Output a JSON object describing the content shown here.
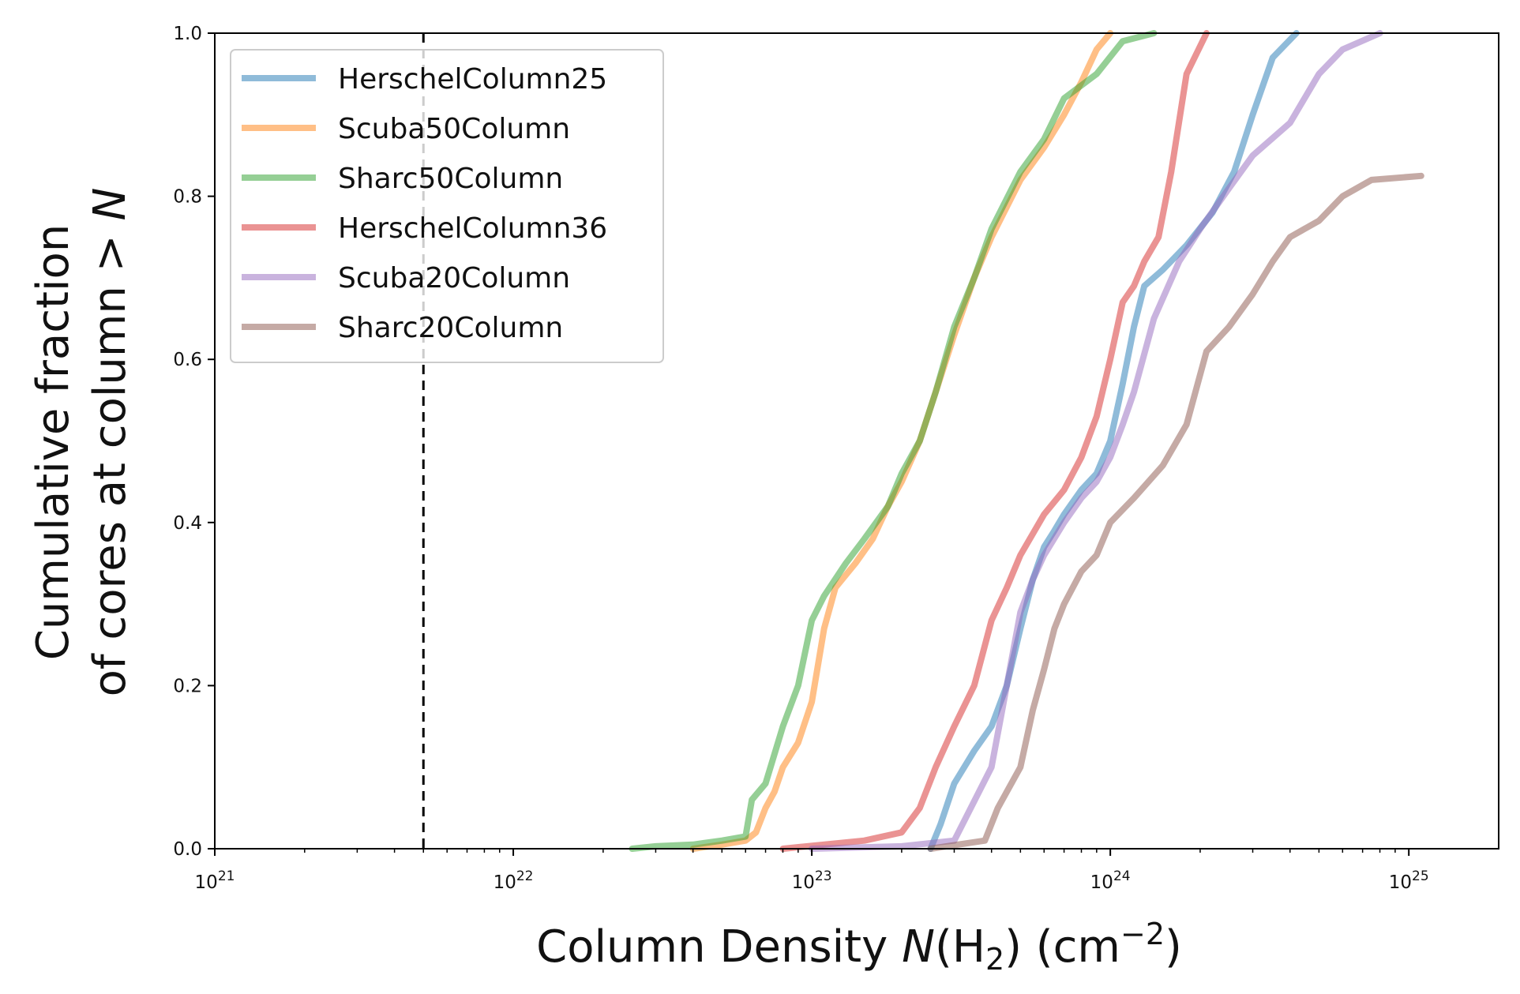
{
  "chart_data": {
    "type": "line",
    "xscale": "log",
    "xlim": [
      1e+21,
      2e+25
    ],
    "ylim": [
      0,
      1
    ],
    "xlabel": "Column Density N(H2) (cm^-2)",
    "ylabel_line1": "Cumulative fraction",
    "ylabel_line2": "of cores at column > N",
    "xticks": [
      {
        "value": 1e+21,
        "label": "1021"
      },
      {
        "value": 1e+22,
        "label": "1022"
      },
      {
        "value": 1e+23,
        "label": "1023"
      },
      {
        "value": 1e+24,
        "label": "1024"
      },
      {
        "value": 1e+25,
        "label": "1025"
      }
    ],
    "yticks": [
      "0.0",
      "0.2",
      "0.4",
      "0.6",
      "0.8",
      "1.0"
    ],
    "grid": false,
    "legend_position": "upper-left",
    "reference_line": {
      "x": 5e+21,
      "style": "dashed",
      "color": "#000000"
    },
    "series": [
      {
        "name": "HerschelColumn25",
        "color": "#1f77b4",
        "x": [
          2.5e+23,
          2.7e+23,
          3e+23,
          3.5e+23,
          4e+23,
          4.5e+23,
          5e+23,
          5.5e+23,
          6e+23,
          6.5e+23,
          7e+23,
          8e+23,
          9e+23,
          1e+24,
          1.1e+24,
          1.2e+24,
          1.3e+24,
          1.5e+24,
          1.8e+24,
          2.2e+24,
          2.6e+24,
          3e+24,
          3.5e+24,
          4.2e+24
        ],
        "y": [
          0.0,
          0.03,
          0.08,
          0.12,
          0.15,
          0.2,
          0.27,
          0.33,
          0.37,
          0.39,
          0.41,
          0.44,
          0.46,
          0.5,
          0.57,
          0.64,
          0.69,
          0.71,
          0.74,
          0.78,
          0.83,
          0.9,
          0.97,
          1.0
        ]
      },
      {
        "name": "Scuba50Column",
        "color": "#ff7f0e",
        "x": [
          4e+22,
          5e+22,
          6e+22,
          6.5e+22,
          7e+22,
          7.5e+22,
          8e+22,
          9e+22,
          1e+23,
          1.1e+23,
          1.2e+23,
          1.4e+23,
          1.6e+23,
          1.8e+23,
          2e+23,
          2.3e+23,
          2.6e+23,
          3e+23,
          3.5e+23,
          4e+23,
          5e+23,
          6e+23,
          7e+23,
          8e+23,
          9e+23,
          1e+24
        ],
        "y": [
          0.0,
          0.005,
          0.01,
          0.02,
          0.05,
          0.07,
          0.1,
          0.13,
          0.18,
          0.27,
          0.32,
          0.35,
          0.38,
          0.42,
          0.45,
          0.5,
          0.56,
          0.63,
          0.7,
          0.75,
          0.82,
          0.86,
          0.9,
          0.94,
          0.98,
          1.0
        ]
      },
      {
        "name": "Sharc50Column",
        "color": "#2ca02c",
        "x": [
          2.5e+22,
          3e+22,
          4e+22,
          5e+22,
          6e+22,
          6.3e+22,
          7e+22,
          8e+22,
          9e+22,
          1e+23,
          1.1e+23,
          1.3e+23,
          1.5e+23,
          1.8e+23,
          2e+23,
          2.3e+23,
          2.6e+23,
          3e+23,
          3.5e+23,
          4e+23,
          5e+23,
          6e+23,
          7e+23,
          9e+23,
          1.1e+24,
          1.4e+24
        ],
        "y": [
          0.0,
          0.003,
          0.005,
          0.01,
          0.015,
          0.06,
          0.08,
          0.15,
          0.2,
          0.28,
          0.31,
          0.35,
          0.38,
          0.42,
          0.46,
          0.5,
          0.56,
          0.64,
          0.7,
          0.76,
          0.83,
          0.87,
          0.92,
          0.95,
          0.99,
          1.0
        ]
      },
      {
        "name": "HerschelColumn36",
        "color": "#d62728",
        "x": [
          8e+22,
          1.5e+23,
          2e+23,
          2.3e+23,
          2.6e+23,
          3e+23,
          3.5e+23,
          4e+23,
          4.5e+23,
          5e+23,
          6e+23,
          7e+23,
          8e+23,
          9e+23,
          1e+24,
          1.1e+24,
          1.2e+24,
          1.3e+24,
          1.45e+24,
          1.6e+24,
          1.8e+24,
          2.1e+24
        ],
        "y": [
          0.0,
          0.01,
          0.02,
          0.05,
          0.1,
          0.15,
          0.2,
          0.28,
          0.32,
          0.36,
          0.41,
          0.44,
          0.48,
          0.53,
          0.6,
          0.67,
          0.69,
          0.72,
          0.75,
          0.83,
          0.95,
          1.0
        ]
      },
      {
        "name": "Scuba20Column",
        "color": "#9467bd",
        "x": [
          1e+23,
          2e+23,
          3e+23,
          4e+23,
          4.5e+23,
          5e+23,
          5.5e+23,
          6e+23,
          7e+23,
          8e+23,
          9e+23,
          1e+24,
          1.1e+24,
          1.2e+24,
          1.4e+24,
          1.7e+24,
          2e+24,
          2.5e+24,
          3e+24,
          4e+24,
          5e+24,
          6e+24,
          8e+24
        ],
        "y": [
          0.0,
          0.003,
          0.01,
          0.1,
          0.2,
          0.29,
          0.33,
          0.36,
          0.4,
          0.43,
          0.45,
          0.48,
          0.52,
          0.56,
          0.65,
          0.72,
          0.76,
          0.81,
          0.85,
          0.89,
          0.95,
          0.98,
          1.0
        ]
      },
      {
        "name": "Sharc20Column",
        "color": "#8c564b",
        "x": [
          2.5e+23,
          3.8e+23,
          4.2e+23,
          5e+23,
          5.5e+23,
          6e+23,
          6.5e+23,
          7e+23,
          8e+23,
          9e+23,
          1e+24,
          1.2e+24,
          1.5e+24,
          1.8e+24,
          2.1e+24,
          2.5e+24,
          3e+24,
          3.5e+24,
          4e+24,
          5e+24,
          6e+24,
          7.5e+24,
          1.1e+25
        ],
        "y": [
          0.0,
          0.01,
          0.05,
          0.1,
          0.17,
          0.22,
          0.27,
          0.3,
          0.34,
          0.36,
          0.4,
          0.43,
          0.47,
          0.52,
          0.61,
          0.64,
          0.68,
          0.72,
          0.75,
          0.77,
          0.8,
          0.82,
          0.825
        ]
      }
    ]
  }
}
